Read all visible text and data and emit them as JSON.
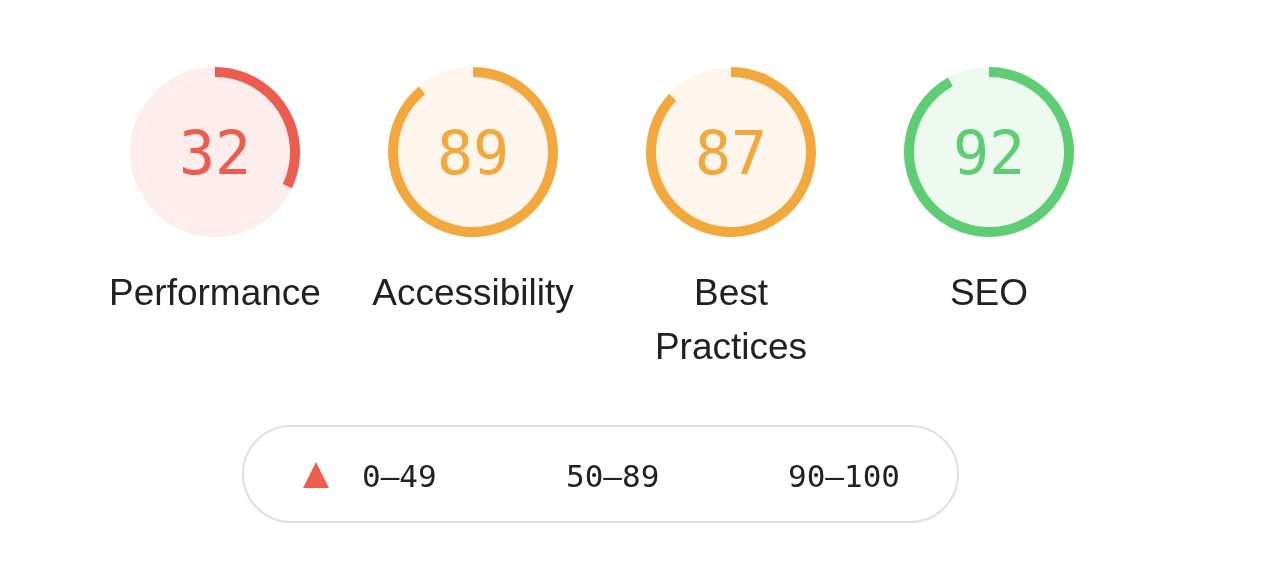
{
  "chart_data": [
    {
      "type": "donut",
      "title": "Performance",
      "categories": [
        null,
        null
      ],
      "values": [
        32,
        68
      ],
      "colors": [
        "#ec5d4d",
        "#fdeeed"
      ],
      "value_labels": [
        "32",
        null
      ]
    },
    {
      "type": "donut",
      "title": "Accessibility",
      "categories": [
        null,
        null
      ],
      "values": [
        89,
        11
      ],
      "colors": [
        "#f2a83c",
        "#fef5ec"
      ],
      "value_labels": [
        "89",
        null
      ]
    },
    {
      "type": "donut",
      "title": "Best Practices",
      "categories": [
        null,
        null
      ],
      "values": [
        87,
        13
      ],
      "colors": [
        "#f2a83c",
        "#fef5ec"
      ],
      "value_labels": [
        "87",
        null
      ]
    },
    {
      "type": "donut",
      "title": "SEO",
      "categories": [
        null,
        null
      ],
      "values": [
        92,
        8
      ],
      "colors": [
        "#5ecd74",
        "#eef9f0"
      ],
      "value_labels": [
        "92",
        null
      ]
    },
    {
      "type": "other",
      "annotations": [
        "0–49",
        "50–89",
        "90–100"
      ]
    }
  ]
}
